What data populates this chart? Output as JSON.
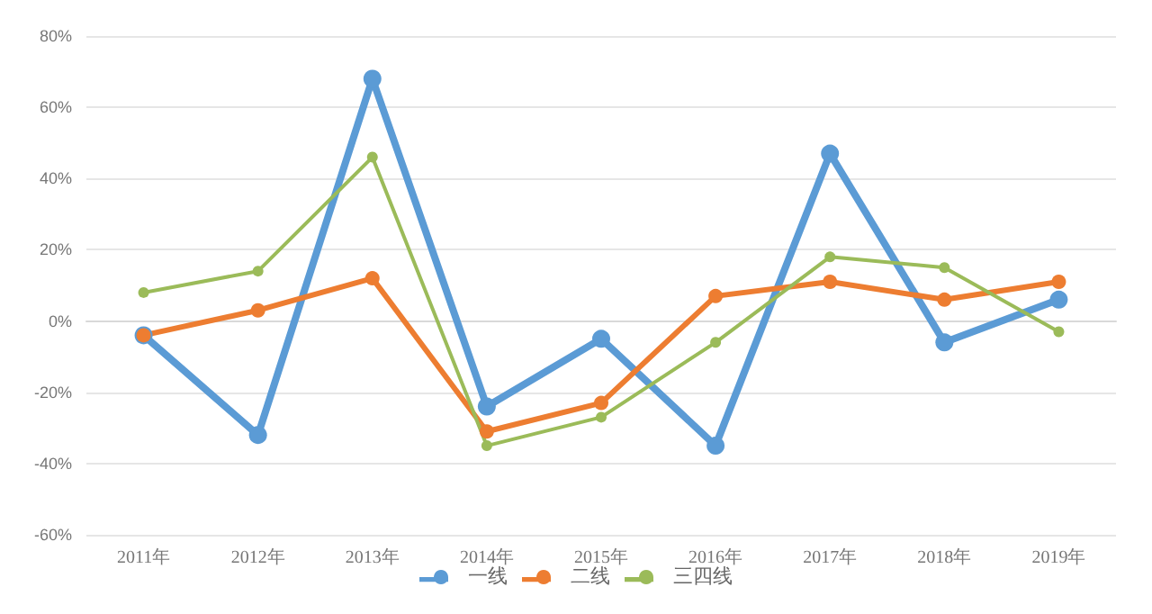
{
  "chart_data": {
    "type": "line",
    "categories": [
      "2011年",
      "2012年",
      "2013年",
      "2014年",
      "2015年",
      "2016年",
      "2017年",
      "2018年",
      "2019年"
    ],
    "series": [
      {
        "name": "一线",
        "color": "#5b9bd5",
        "values": [
          -4,
          -32,
          68,
          -24,
          -5,
          -35,
          47,
          -6,
          6
        ]
      },
      {
        "name": "二线",
        "color": "#ed7d31",
        "values": [
          -4,
          3,
          12,
          -31,
          -23,
          7,
          11,
          6,
          11
        ]
      },
      {
        "name": "三四线",
        "color": "#9bbb59",
        "values": [
          8,
          14,
          46,
          -35,
          -27,
          -6,
          18,
          15,
          -3
        ]
      }
    ],
    "ylim": [
      -60,
      80
    ],
    "yticks": [
      {
        "value": -60,
        "label": "-60%"
      },
      {
        "value": -40,
        "label": "-40%"
      },
      {
        "value": -20,
        "label": "-20%"
      },
      {
        "value": 0,
        "label": "0%"
      },
      {
        "value": 20,
        "label": "20%"
      },
      {
        "value": 40,
        "label": "40%"
      },
      {
        "value": 60,
        "label": "60%"
      },
      {
        "value": 80,
        "label": "80%"
      }
    ],
    "grid": "y",
    "legend": "bottom",
    "marker": "circle",
    "line_style": "solid"
  }
}
